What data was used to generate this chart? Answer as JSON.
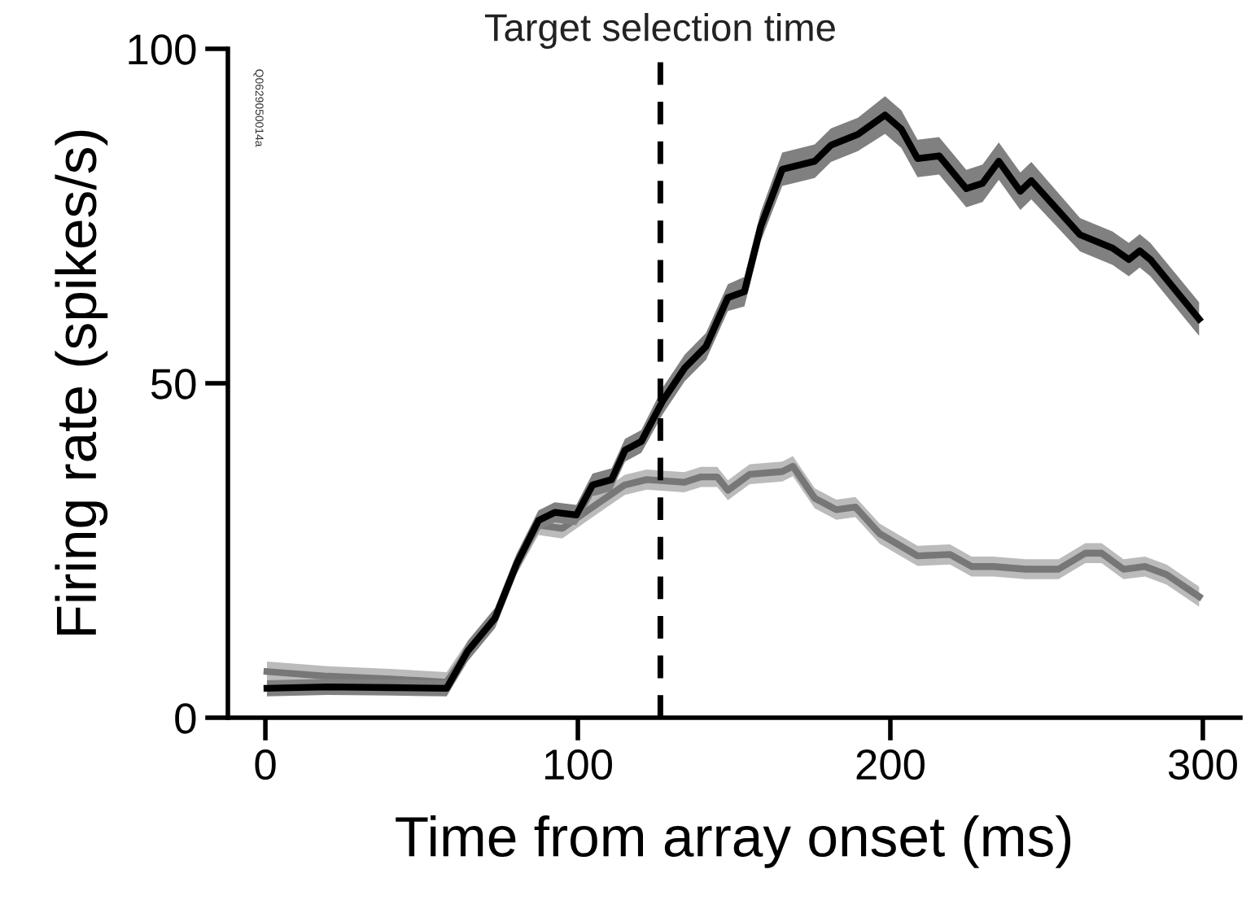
{
  "chart_data": {
    "type": "line",
    "xlabel": "Time from array onset (ms)",
    "ylabel": "Firing rate (spikes/s)",
    "xlim": [
      -12,
      312
    ],
    "ylim": [
      0,
      100
    ],
    "xticks": [
      0,
      100,
      200,
      300
    ],
    "yticks": [
      0,
      50,
      100
    ],
    "grid": false,
    "marker": "none",
    "line_style": "solid",
    "series": [
      {
        "color": "#777777",
        "x": [
          0.5,
          20,
          40,
          58,
          64.8,
          73.5,
          80.4,
          87.4,
          95,
          104.7,
          115,
          122,
          134,
          139.4,
          144.6,
          148,
          155,
          165.4,
          168.8,
          175.8,
          182.7,
          188.8,
          196.6,
          208.7,
          219.1,
          226,
          233,
          243.4,
          253.8,
          262.4,
          267.6,
          274.6,
          281.5,
          288.4,
          298.8
        ],
        "values": [
          6.9,
          6.2,
          5.8,
          5.3,
          10,
          14.9,
          23,
          28.8,
          28.3,
          31.5,
          34.8,
          35.6,
          35.2,
          36,
          36,
          34,
          36.4,
          36.8,
          37.6,
          32.8,
          31.1,
          31.5,
          27.5,
          24.2,
          24.4,
          22.6,
          22.6,
          22.2,
          22.2,
          24.6,
          24.6,
          22.2,
          22.6,
          21.4,
          18.1
        ],
        "lower": [
          5.4,
          4.7,
          4.3,
          3.8,
          8.5,
          13.4,
          21.5,
          27.3,
          26.8,
          30,
          33.3,
          34.1,
          33.7,
          34.5,
          34.5,
          32.5,
          34.9,
          35.3,
          36.1,
          31.3,
          29.6,
          30,
          26,
          22.7,
          22.9,
          21.1,
          21.1,
          20.7,
          20.7,
          23.1,
          23.1,
          20.7,
          21.1,
          19.9,
          16.6
        ],
        "upper": [
          8.4,
          7.7,
          7.3,
          6.8,
          11.5,
          16.4,
          24.5,
          30.3,
          29.8,
          33,
          36.3,
          37.1,
          36.7,
          37.5,
          37.5,
          35.5,
          37.9,
          38.3,
          39.1,
          34.3,
          32.6,
          33,
          29,
          25.7,
          25.9,
          24.1,
          24.1,
          23.7,
          23.7,
          26.1,
          26.1,
          23.7,
          24.1,
          22.9,
          19.6
        ]
      },
      {
        "color": "#000000",
        "x": [
          0.5,
          20,
          40,
          58,
          64.8,
          73.5,
          80.4,
          87.4,
          92.6,
          99.5,
          104.7,
          110.8,
          115.1,
          120.3,
          127.2,
          134.2,
          141,
          148,
          153.3,
          158.5,
          165.4,
          175.8,
          181,
          189.6,
          198.3,
          203.5,
          208.7,
          215.6,
          224.3,
          229.5,
          234.7,
          241.6,
          245.1,
          260.7,
          271.1,
          276.3,
          279.8,
          283.2,
          298.8
        ],
        "values": [
          4.4,
          4.6,
          4.5,
          4.4,
          10,
          14.9,
          23,
          29.5,
          30.7,
          30.3,
          34.8,
          35.6,
          40,
          41.3,
          47.4,
          52.3,
          55.5,
          62.8,
          63.7,
          73.4,
          82,
          83.2,
          85.6,
          87.2,
          90.1,
          88,
          83.6,
          84,
          79.1,
          79.9,
          83.2,
          78.7,
          80.3,
          72.2,
          70.2,
          68.5,
          69.8,
          68.5,
          59.6
        ],
        "lower": [
          3.2,
          3.4,
          3.3,
          3.2,
          8.5,
          13.4,
          21.5,
          28,
          29.2,
          28.8,
          33.1,
          33.9,
          38.3,
          39.6,
          45.4,
          50.3,
          53.5,
          60.8,
          61.5,
          71.2,
          79.5,
          80.7,
          83.1,
          84.7,
          87.3,
          85.2,
          80.8,
          81.2,
          76.3,
          77.1,
          80.4,
          75.9,
          77.5,
          69.7,
          67.7,
          66,
          67.3,
          66,
          57.1
        ],
        "upper": [
          5.6,
          5.8,
          5.7,
          5.6,
          11.5,
          16.4,
          24.5,
          31,
          32.2,
          31.8,
          36.5,
          37.3,
          41.7,
          43,
          49.4,
          54.3,
          57.5,
          64.8,
          65.9,
          75.6,
          84.5,
          85.7,
          88.1,
          89.7,
          92.9,
          90.8,
          86.4,
          86.8,
          81.9,
          82.7,
          86,
          81.5,
          83.1,
          74.7,
          72.7,
          71,
          72.3,
          71,
          62.1
        ]
      }
    ],
    "ref_lines": [
      {
        "axis": "x",
        "value": 126.4,
        "label": "Target selection time",
        "color": "#000000",
        "line_style": "dashed"
      }
    ],
    "annotations": [
      "Q0629050014a"
    ]
  }
}
